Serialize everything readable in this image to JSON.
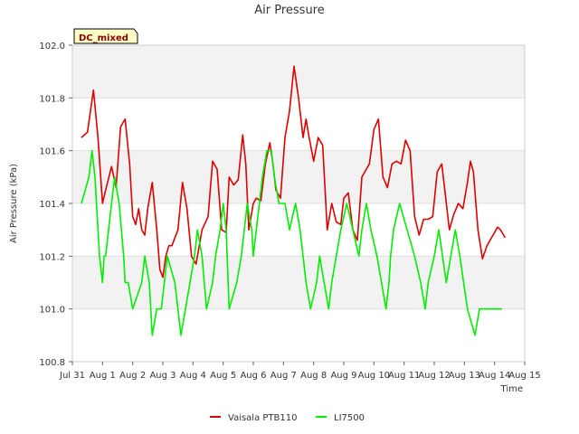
{
  "chart_data": {
    "type": "line",
    "title": "Air Pressure",
    "xlabel": "Time",
    "ylabel": "Air Pressure (kPa)",
    "ylim": [
      100.8,
      102.0
    ],
    "yticks": [
      100.8,
      101.0,
      101.2,
      101.4,
      101.6,
      101.8,
      102.0
    ],
    "yticklabels": [
      "100.8",
      "101.0",
      "101.2",
      "101.4",
      "101.6",
      "101.8",
      "102.0"
    ],
    "xlim": [
      0,
      15
    ],
    "xticks": [
      0,
      1,
      2,
      3,
      4,
      5,
      6,
      7,
      8,
      9,
      10,
      11,
      12,
      13,
      14,
      15
    ],
    "xticklabels": [
      "Jul 31",
      "Aug 1",
      "Aug 2",
      "Aug 3",
      "Aug 4",
      "Aug 5",
      "Aug 6",
      "Aug 7",
      "Aug 8",
      "Aug 9",
      "Aug 10",
      "Aug 11",
      "Aug 12",
      "Aug 13",
      "Aug 14",
      "Aug 15"
    ],
    "annotation": "DC_mixed",
    "grid": true,
    "band_shading": true,
    "legend_position": "bottom-center",
    "series": [
      {
        "name": "Vaisala PTB110",
        "color": "#dd0000",
        "x": [
          0.3,
          0.5,
          0.7,
          0.85,
          1.0,
          1.1,
          1.3,
          1.45,
          1.6,
          1.75,
          1.9,
          2.0,
          2.1,
          2.2,
          2.3,
          2.4,
          2.5,
          2.65,
          2.8,
          2.9,
          3.0,
          3.1,
          3.2,
          3.3,
          3.5,
          3.65,
          3.8,
          3.95,
          4.1,
          4.3,
          4.5,
          4.65,
          4.8,
          4.95,
          5.1,
          5.2,
          5.35,
          5.5,
          5.65,
          5.75,
          5.85,
          6.0,
          6.1,
          6.25,
          6.4,
          6.55,
          6.65,
          6.75,
          6.9,
          7.05,
          7.2,
          7.35,
          7.5,
          7.65,
          7.75,
          7.85,
          8.0,
          8.15,
          8.3,
          8.45,
          8.6,
          8.75,
          8.9,
          9.0,
          9.15,
          9.3,
          9.45,
          9.6,
          9.7,
          9.85,
          10.0,
          10.15,
          10.3,
          10.45,
          10.6,
          10.75,
          10.9,
          11.05,
          11.2,
          11.35,
          11.5,
          11.65,
          11.8,
          11.95,
          12.1,
          12.25,
          12.35,
          12.5,
          12.65,
          12.8,
          12.95,
          13.1,
          13.2,
          13.3,
          13.45,
          13.6,
          13.75,
          13.9,
          14.0,
          14.1,
          14.2,
          14.35
        ],
        "values": [
          101.65,
          101.67,
          101.83,
          101.65,
          101.4,
          101.45,
          101.54,
          101.46,
          101.69,
          101.72,
          101.55,
          101.35,
          101.32,
          101.38,
          101.3,
          101.28,
          101.38,
          101.48,
          101.3,
          101.15,
          101.12,
          101.2,
          101.24,
          101.24,
          101.3,
          101.48,
          101.38,
          101.2,
          101.17,
          101.3,
          101.35,
          101.56,
          101.53,
          101.3,
          101.29,
          101.5,
          101.47,
          101.49,
          101.66,
          101.55,
          101.3,
          101.4,
          101.42,
          101.41,
          101.55,
          101.63,
          101.55,
          101.45,
          101.42,
          101.65,
          101.75,
          101.92,
          101.8,
          101.65,
          101.72,
          101.65,
          101.56,
          101.65,
          101.62,
          101.3,
          101.4,
          101.33,
          101.32,
          101.42,
          101.44,
          101.3,
          101.26,
          101.5,
          101.52,
          101.55,
          101.68,
          101.72,
          101.5,
          101.46,
          101.55,
          101.56,
          101.55,
          101.64,
          101.6,
          101.35,
          101.28,
          101.34,
          101.34,
          101.35,
          101.52,
          101.55,
          101.45,
          101.3,
          101.36,
          101.4,
          101.38,
          101.48,
          101.56,
          101.52,
          101.3,
          101.19,
          101.24,
          101.27,
          101.29,
          101.31,
          101.3,
          101.27
        ]
      },
      {
        "name": "LI7500",
        "color": "#00ee00",
        "x": [
          0.3,
          0.55,
          0.65,
          0.75,
          0.85,
          0.9,
          1.0,
          1.05,
          1.1,
          1.2,
          1.3,
          1.4,
          1.55,
          1.7,
          1.75,
          1.85,
          2.0,
          2.3,
          2.4,
          2.55,
          2.65,
          2.8,
          2.95,
          3.15,
          3.4,
          3.6,
          3.75,
          3.9,
          4.05,
          4.15,
          4.3,
          4.45,
          4.65,
          4.75,
          4.9,
          5.0,
          5.1,
          5.2,
          5.45,
          5.6,
          5.7,
          5.8,
          5.95,
          6.0,
          6.1,
          6.2,
          6.3,
          6.45,
          6.6,
          6.7,
          6.85,
          7.05,
          7.2,
          7.4,
          7.55,
          7.75,
          7.9,
          8.1,
          8.2,
          8.35,
          8.5,
          8.6,
          8.75,
          8.9,
          9.1,
          9.3,
          9.5,
          9.6,
          9.75,
          9.9,
          10.1,
          10.25,
          10.4,
          10.5,
          10.55,
          10.65,
          10.85,
          11.1,
          11.35,
          11.55,
          11.7,
          11.8,
          12.0,
          12.15,
          12.4,
          12.55,
          12.7,
          12.85,
          13.1,
          13.35,
          13.5,
          13.65,
          13.8,
          13.95,
          14.1,
          14.25
        ],
        "values": [
          101.4,
          101.5,
          101.6,
          101.5,
          101.3,
          101.2,
          101.1,
          101.2,
          101.2,
          101.3,
          101.4,
          101.5,
          101.4,
          101.2,
          101.1,
          101.1,
          101.0,
          101.1,
          101.2,
          101.1,
          100.9,
          101.0,
          101.0,
          101.2,
          101.1,
          100.9,
          101.0,
          101.1,
          101.2,
          101.3,
          101.2,
          101.0,
          101.1,
          101.2,
          101.3,
          101.4,
          101.3,
          101.0,
          101.1,
          101.2,
          101.3,
          101.4,
          101.3,
          101.2,
          101.3,
          101.4,
          101.5,
          101.6,
          101.6,
          101.5,
          101.4,
          101.4,
          101.3,
          101.4,
          101.3,
          101.1,
          101.0,
          101.1,
          101.2,
          101.1,
          101.0,
          101.1,
          101.2,
          101.3,
          101.4,
          101.3,
          101.2,
          101.3,
          101.4,
          101.3,
          101.2,
          101.1,
          101.0,
          101.1,
          101.2,
          101.3,
          101.4,
          101.3,
          101.2,
          101.1,
          101.0,
          101.1,
          101.2,
          101.3,
          101.1,
          101.2,
          101.3,
          101.2,
          101.0,
          100.9,
          101.0,
          101.0,
          101.0,
          101.0,
          101.0,
          101.0
        ]
      }
    ]
  }
}
